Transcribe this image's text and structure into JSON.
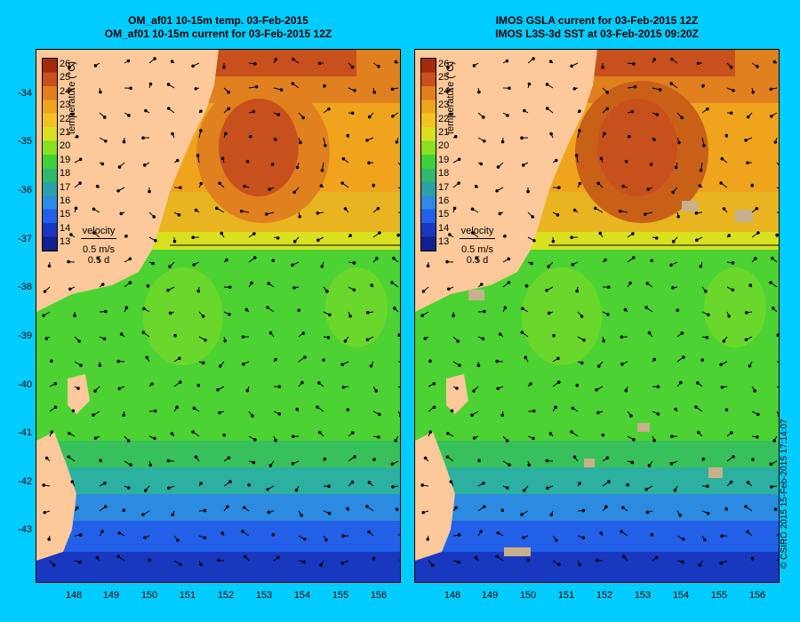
{
  "left": {
    "title_line1": "OM_af01 10-15m temp. 03-Feb-2015",
    "title_line2": "OM_af01 10-15m current for 03-Feb-2015 12Z"
  },
  "right": {
    "title_line1": "IMOS GSLA current for 03-Feb-2015 12Z",
    "title_line2": "IMOS L3S-3d SST at 03-Feb-2015 09:20Z"
  },
  "colorbar": {
    "title": "temperature (°C)",
    "labels": [
      "26",
      "25",
      "24",
      "23",
      "22",
      "21",
      "20",
      "19",
      "18",
      "17",
      "16",
      "15",
      "14",
      "13"
    ],
    "colors": [
      "#a4280c",
      "#c8501c",
      "#e0801e",
      "#f0a41e",
      "#f4c220",
      "#d8e020",
      "#8ae01c",
      "#3ed23a",
      "#30b870",
      "#2ca0a8",
      "#2c8ae0",
      "#2260e8",
      "#1838c0",
      "#10208c"
    ]
  },
  "velocity": {
    "label": "velocity",
    "speed": "0.5 m/s",
    "duration": "0.5 d"
  },
  "lat_ticks": [
    "-34",
    "-35",
    "-36",
    "-37",
    "-38",
    "-39",
    "-40",
    "-41",
    "-42",
    "-43"
  ],
  "lon_ticks": [
    "148",
    "149",
    "150",
    "151",
    "152",
    "153",
    "154",
    "155",
    "156"
  ],
  "credit": "© CSIRO 2015   15-Feb-2015 17:14:07",
  "colors": {
    "background": "#00ccff",
    "land": "#fdc99a",
    "no_data": "#c8b08c"
  }
}
